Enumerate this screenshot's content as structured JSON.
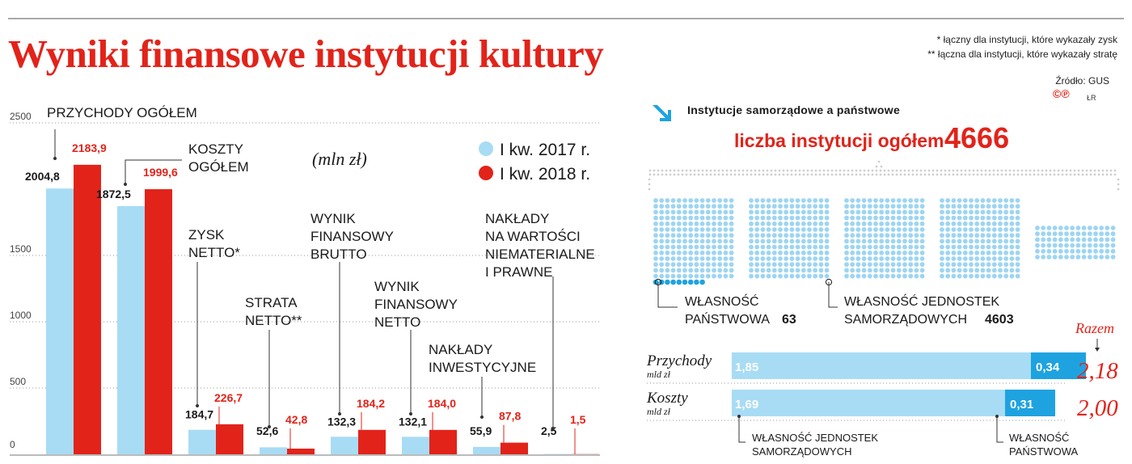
{
  "title": "Wyniki finansowe instytucji kultury",
  "notes": [
    "* łączny dla instytucji, które wykazały zysk",
    "** łączna dla instytucji, które wykazały stratę"
  ],
  "source": "Źródło: GUS",
  "logo": "©℗",
  "initials": "ŁR",
  "colors": {
    "series2017": "#a8dcf4",
    "series2018": "#e2231a",
    "title": "#e2231a",
    "dark": "#1a1a1a",
    "dots": "#9dd5f2",
    "dotsState": "#1ea3e0"
  },
  "chart_data": [
    {
      "type": "bar",
      "unit": "(mln zł)",
      "ylim": [
        0,
        2500
      ],
      "yticks": [
        0,
        500,
        1000,
        1500,
        2500
      ],
      "grid": true,
      "legend_position": "top-right",
      "categories": [
        [
          "PRZYCHODY OGÓŁEM"
        ],
        [
          "KOSZTY",
          "OGÓŁEM"
        ],
        [
          "ZYSK",
          "NETTO*"
        ],
        [
          "STRATA",
          "NETTO**"
        ],
        [
          "WYNIK",
          "FINANSOWY",
          "BRUTTO"
        ],
        [
          "WYNIK",
          "FINANSOWY",
          "NETTO"
        ],
        [
          "NAKŁADY",
          "INWESTYCYJNE"
        ],
        [
          "NAKŁADY",
          "NA WARTOŚCI",
          "NIEMATERIALNE",
          "I PRAWNE"
        ]
      ],
      "series": [
        {
          "name": "I kw. 2017 r.",
          "values": [
            2004.8,
            1872.5,
            184.7,
            52.6,
            132.3,
            132.1,
            55.9,
            2.5
          ],
          "labels": [
            "2004,8",
            "1872,5",
            "184,7",
            "52,6",
            "132,3",
            "132,1",
            "55,9",
            "2,5"
          ]
        },
        {
          "name": "I kw. 2018 r.",
          "values": [
            2183.9,
            1999.6,
            226.7,
            42.8,
            184.2,
            184.0,
            87.8,
            1.5
          ],
          "labels": [
            "2183,9",
            "1999,6",
            "226,7",
            "42,8",
            "184,2",
            "184,0",
            "87,8",
            "1,5"
          ]
        }
      ]
    },
    {
      "type": "bar",
      "orientation": "horizontal",
      "stacked": true,
      "unit": "mld zł",
      "categories": [
        "Przychody",
        "Koszty"
      ],
      "series": [
        {
          "name": "WŁASNOŚĆ JEDNOSTEK SAMORZĄDOWYCH",
          "values": [
            1.85,
            1.69
          ],
          "labels": [
            "1,85",
            "1,69"
          ]
        },
        {
          "name": "WŁASNOŚĆ PAŃSTWOWA",
          "values": [
            0.34,
            0.31
          ],
          "labels": [
            "0,34",
            "0,31"
          ]
        }
      ],
      "totals_label": "Razem",
      "totals": [
        "2,18",
        "2,00"
      ]
    }
  ],
  "institutions": {
    "heading": "Instytucje samorządowe a państwowe",
    "total_label": "liczba instytucji ogółem",
    "total": "4666",
    "state_label": [
      "WŁASNOŚĆ",
      "PAŃSTWOWA"
    ],
    "state_value": "63",
    "local_label": [
      "WŁASNOŚĆ JEDNOSTEK",
      "SAMORZĄDOWYCH"
    ],
    "local_value": "4603"
  }
}
